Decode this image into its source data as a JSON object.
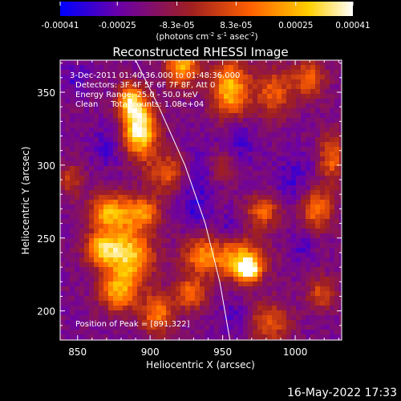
{
  "colorbar": {
    "tick_labels": [
      "-0.00041",
      "-0.00025",
      "-8.3e-05",
      "8.3e-05",
      "0.00025",
      "0.00041"
    ],
    "tick_values": [
      -0.00041,
      -0.00025,
      -8.3e-05,
      8.3e-05,
      0.00025,
      0.00041
    ],
    "range": [
      -0.00041,
      0.00041
    ],
    "units_parts": [
      "(photons cm",
      "-2",
      " s",
      "-1",
      " asec",
      "-2",
      ")"
    ],
    "colormap_stops": [
      "#0000ff",
      "#6a00a8",
      "#a02020",
      "#ff6000",
      "#ffd000",
      "#ffffff"
    ]
  },
  "chart_data": {
    "type": "heatmap",
    "title": "Reconstructed RHESSI Image",
    "xlabel": "Heliocentric X (arcsec)",
    "ylabel": "Heliocentric Y (arcsec)",
    "xlim": [
      838,
      1032
    ],
    "ylim": [
      180,
      372
    ],
    "xticks": [
      "850",
      "900",
      "950",
      "1000"
    ],
    "xtick_values": [
      850,
      900,
      950,
      1000
    ],
    "yticks": [
      "200",
      "250",
      "300",
      "350"
    ],
    "ytick_values": [
      200,
      250,
      300,
      350
    ],
    "peak": [
      891,
      322
    ],
    "limb_line": [
      [
        890,
        372
      ],
      [
        906,
        340
      ],
      [
        924,
        300
      ],
      [
        938,
        260
      ],
      [
        948,
        220
      ],
      [
        955,
        180
      ]
    ],
    "annotations": {
      "time_range": "3-Dec-2011 01:40:36.000 to 01:48:36.000",
      "detectors": "Detectors: 3F 4F 5F 6F 7F 8F, Att 0",
      "energy": "Energy Range: 25.0 - 50.0 keV",
      "method": "Clean     Total counts: 1.08e+04",
      "peak_label": "Position of Peak = [891,322]"
    },
    "blobs": [
      {
        "x": 893,
        "y": 325,
        "sx": 8,
        "sy": 13,
        "a": 1.0
      },
      {
        "x": 886,
        "y": 345,
        "sx": 6,
        "sy": 8,
        "a": 0.7
      },
      {
        "x": 912,
        "y": 295,
        "sx": 10,
        "sy": 10,
        "a": 0.45
      },
      {
        "x": 922,
        "y": 368,
        "sx": 8,
        "sy": 10,
        "a": 0.7
      },
      {
        "x": 955,
        "y": 352,
        "sx": 9,
        "sy": 14,
        "a": 0.75
      },
      {
        "x": 985,
        "y": 350,
        "sx": 10,
        "sy": 12,
        "a": 0.45
      },
      {
        "x": 1010,
        "y": 360,
        "sx": 8,
        "sy": 10,
        "a": 0.45
      },
      {
        "x": 872,
        "y": 268,
        "sx": 10,
        "sy": 9,
        "a": 0.7
      },
      {
        "x": 895,
        "y": 268,
        "sx": 8,
        "sy": 8,
        "a": 0.55
      },
      {
        "x": 866,
        "y": 243,
        "sx": 8,
        "sy": 8,
        "a": 0.6
      },
      {
        "x": 885,
        "y": 238,
        "sx": 12,
        "sy": 14,
        "a": 0.8
      },
      {
        "x": 878,
        "y": 212,
        "sx": 9,
        "sy": 9,
        "a": 0.6
      },
      {
        "x": 905,
        "y": 198,
        "sx": 8,
        "sy": 10,
        "a": 0.55
      },
      {
        "x": 935,
        "y": 238,
        "sx": 9,
        "sy": 9,
        "a": 0.55
      },
      {
        "x": 928,
        "y": 212,
        "sx": 8,
        "sy": 8,
        "a": 0.5
      },
      {
        "x": 962,
        "y": 235,
        "sx": 12,
        "sy": 10,
        "a": 0.7
      },
      {
        "x": 968,
        "y": 228,
        "sx": 5,
        "sy": 5,
        "a": 0.8
      },
      {
        "x": 978,
        "y": 268,
        "sx": 8,
        "sy": 8,
        "a": 0.5
      },
      {
        "x": 1015,
        "y": 270,
        "sx": 8,
        "sy": 10,
        "a": 0.55
      },
      {
        "x": 1025,
        "y": 305,
        "sx": 6,
        "sy": 12,
        "a": 0.5
      },
      {
        "x": 982,
        "y": 192,
        "sx": 10,
        "sy": 10,
        "a": 0.45
      },
      {
        "x": 1018,
        "y": 212,
        "sx": 7,
        "sy": 8,
        "a": 0.4
      },
      {
        "x": 950,
        "y": 300,
        "sx": 8,
        "sy": 8,
        "a": 0.3
      },
      {
        "x": 845,
        "y": 290,
        "sx": 6,
        "sy": 8,
        "a": 0.35
      }
    ],
    "dark_spots": [
      {
        "x": 932,
        "y": 292,
        "sx": 9,
        "sy": 14,
        "a": 0.55
      },
      {
        "x": 960,
        "y": 315,
        "sx": 9,
        "sy": 12,
        "a": 0.5
      },
      {
        "x": 930,
        "y": 268,
        "sx": 7,
        "sy": 7,
        "a": 0.45
      },
      {
        "x": 870,
        "y": 312,
        "sx": 7,
        "sy": 9,
        "a": 0.45
      },
      {
        "x": 1000,
        "y": 290,
        "sx": 10,
        "sy": 12,
        "a": 0.45
      },
      {
        "x": 955,
        "y": 258,
        "sx": 6,
        "sy": 6,
        "a": 0.4
      },
      {
        "x": 958,
        "y": 195,
        "sx": 8,
        "sy": 8,
        "a": 0.4
      },
      {
        "x": 1005,
        "y": 245,
        "sx": 6,
        "sy": 8,
        "a": 0.4
      },
      {
        "x": 848,
        "y": 360,
        "sx": 7,
        "sy": 7,
        "a": 0.4
      }
    ]
  },
  "footer": {
    "timestamp": "16-May-2022 17:33"
  }
}
